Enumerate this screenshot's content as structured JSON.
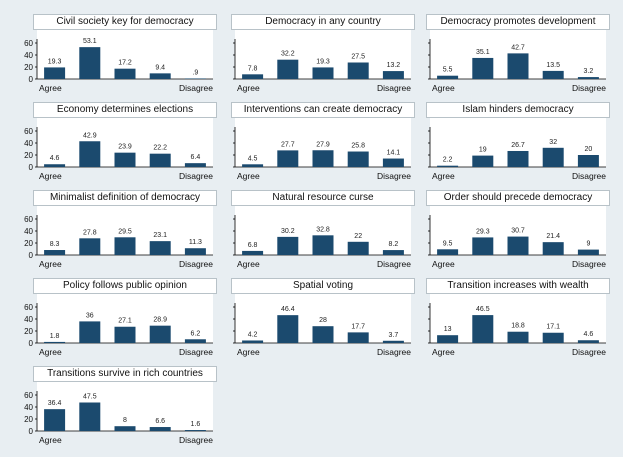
{
  "bar_color": "#1b4a6e",
  "background_color": "#e8eef2",
  "chart_data": [
    {
      "type": "bar",
      "title": "Civil society key for democracy",
      "categories": [
        "Agree",
        "",
        "",
        "",
        "Disagree"
      ],
      "values": [
        19.3,
        53.1,
        17.2,
        9.4,
        0.9
      ],
      "value_labels": [
        "19.3",
        "53.1",
        "17.2",
        "9.4",
        ".9"
      ],
      "ylim": [
        0,
        60
      ],
      "yticks": [
        "0",
        "20",
        "40",
        "60"
      ],
      "xlabel": "",
      "ylabel": "",
      "grid": false
    },
    {
      "type": "bar",
      "title": "Democracy in any country",
      "categories": [
        "Agree",
        "",
        "",
        "",
        "Disagree"
      ],
      "values": [
        7.8,
        32.2,
        19.3,
        27.5,
        13.2
      ],
      "value_labels": [
        "7.8",
        "32.2",
        "19.3",
        "27.5",
        "13.2"
      ],
      "ylim": [
        0,
        60
      ],
      "yticks": [],
      "xlabel": "",
      "ylabel": "",
      "grid": false
    },
    {
      "type": "bar",
      "title": "Democracy promotes development",
      "categories": [
        "Agree",
        "",
        "",
        "",
        "Disagree"
      ],
      "values": [
        5.5,
        35.1,
        42.7,
        13.5,
        3.2
      ],
      "value_labels": [
        "5.5",
        "35.1",
        "42.7",
        "13.5",
        "3.2"
      ],
      "ylim": [
        0,
        60
      ],
      "yticks": [],
      "xlabel": "",
      "ylabel": "",
      "grid": false
    },
    {
      "type": "bar",
      "title": "Economy determines elections",
      "categories": [
        "Agree",
        "",
        "",
        "",
        "Disagree"
      ],
      "values": [
        4.6,
        42.9,
        23.9,
        22.2,
        6.4
      ],
      "value_labels": [
        "4.6",
        "42.9",
        "23.9",
        "22.2",
        "6.4"
      ],
      "ylim": [
        0,
        60
      ],
      "yticks": [
        "0",
        "20",
        "40",
        "60"
      ],
      "xlabel": "",
      "ylabel": "",
      "grid": false
    },
    {
      "type": "bar",
      "title": "Interventions can create democracy",
      "categories": [
        "Agree",
        "",
        "",
        "",
        "Disagree"
      ],
      "values": [
        4.5,
        27.7,
        27.9,
        25.8,
        14.1
      ],
      "value_labels": [
        "4.5",
        "27.7",
        "27.9",
        "25.8",
        "14.1"
      ],
      "ylim": [
        0,
        60
      ],
      "yticks": [],
      "xlabel": "",
      "ylabel": "",
      "grid": false
    },
    {
      "type": "bar",
      "title": "Islam hinders democracy",
      "categories": [
        "Agree",
        "",
        "",
        "",
        "Disagree"
      ],
      "values": [
        2.2,
        19,
        26.7,
        32,
        20
      ],
      "value_labels": [
        "2.2",
        "19",
        "26.7",
        "32",
        "20"
      ],
      "ylim": [
        0,
        60
      ],
      "yticks": [],
      "xlabel": "",
      "ylabel": "",
      "grid": false
    },
    {
      "type": "bar",
      "title": "Minimalist definition of democracy",
      "categories": [
        "Agree",
        "",
        "",
        "",
        "Disagree"
      ],
      "values": [
        8.3,
        27.8,
        29.5,
        23.1,
        11.3
      ],
      "value_labels": [
        "8.3",
        "27.8",
        "29.5",
        "23.1",
        "11.3"
      ],
      "ylim": [
        0,
        60
      ],
      "yticks": [
        "0",
        "20",
        "40",
        "60"
      ],
      "xlabel": "",
      "ylabel": "",
      "grid": false
    },
    {
      "type": "bar",
      "title": "Natural resource curse",
      "categories": [
        "Agree",
        "",
        "",
        "",
        "Disagree"
      ],
      "values": [
        6.8,
        30.2,
        32.8,
        22,
        8.2
      ],
      "value_labels": [
        "6.8",
        "30.2",
        "32.8",
        "22",
        "8.2"
      ],
      "ylim": [
        0,
        60
      ],
      "yticks": [],
      "xlabel": "",
      "ylabel": "",
      "grid": false
    },
    {
      "type": "bar",
      "title": "Order should precede democracy",
      "categories": [
        "Agree",
        "",
        "",
        "",
        "Disagree"
      ],
      "values": [
        9.5,
        29.3,
        30.7,
        21.4,
        9
      ],
      "value_labels": [
        "9.5",
        "29.3",
        "30.7",
        "21.4",
        "9"
      ],
      "ylim": [
        0,
        60
      ],
      "yticks": [],
      "xlabel": "",
      "ylabel": "",
      "grid": false
    },
    {
      "type": "bar",
      "title": "Policy follows public opinion",
      "categories": [
        "Agree",
        "",
        "",
        "",
        "Disagree"
      ],
      "values": [
        1.8,
        36,
        27.1,
        28.9,
        6.2
      ],
      "value_labels": [
        "1.8",
        "36",
        "27.1",
        "28.9",
        "6.2"
      ],
      "ylim": [
        0,
        60
      ],
      "yticks": [
        "0",
        "20",
        "40",
        "60"
      ],
      "xlabel": "",
      "ylabel": "",
      "grid": false
    },
    {
      "type": "bar",
      "title": "Spatial voting",
      "categories": [
        "Agree",
        "",
        "",
        "",
        "Disagree"
      ],
      "values": [
        4.2,
        46.4,
        28,
        17.7,
        3.7
      ],
      "value_labels": [
        "4.2",
        "46.4",
        "28",
        "17.7",
        "3.7"
      ],
      "ylim": [
        0,
        60
      ],
      "yticks": [],
      "xlabel": "",
      "ylabel": "",
      "grid": false
    },
    {
      "type": "bar",
      "title": "Transition increases with wealth",
      "categories": [
        "Agree",
        "",
        "",
        "",
        "Disagree"
      ],
      "values": [
        13,
        46.5,
        18.8,
        17.1,
        4.6
      ],
      "value_labels": [
        "13",
        "46.5",
        "18.8",
        "17.1",
        "4.6"
      ],
      "ylim": [
        0,
        60
      ],
      "yticks": [],
      "xlabel": "",
      "ylabel": "",
      "grid": false
    },
    {
      "type": "bar",
      "title": "Transitions survive in rich countries",
      "categories": [
        "Agree",
        "",
        "",
        "",
        "Disagree"
      ],
      "values": [
        36.4,
        47.5,
        8,
        6.6,
        1.6
      ],
      "value_labels": [
        "36.4",
        "47.5",
        "8",
        "6.6",
        "1.6"
      ],
      "ylim": [
        0,
        60
      ],
      "yticks": [
        "0",
        "20",
        "40",
        "60"
      ],
      "xlabel": "",
      "ylabel": "",
      "grid": false
    }
  ]
}
